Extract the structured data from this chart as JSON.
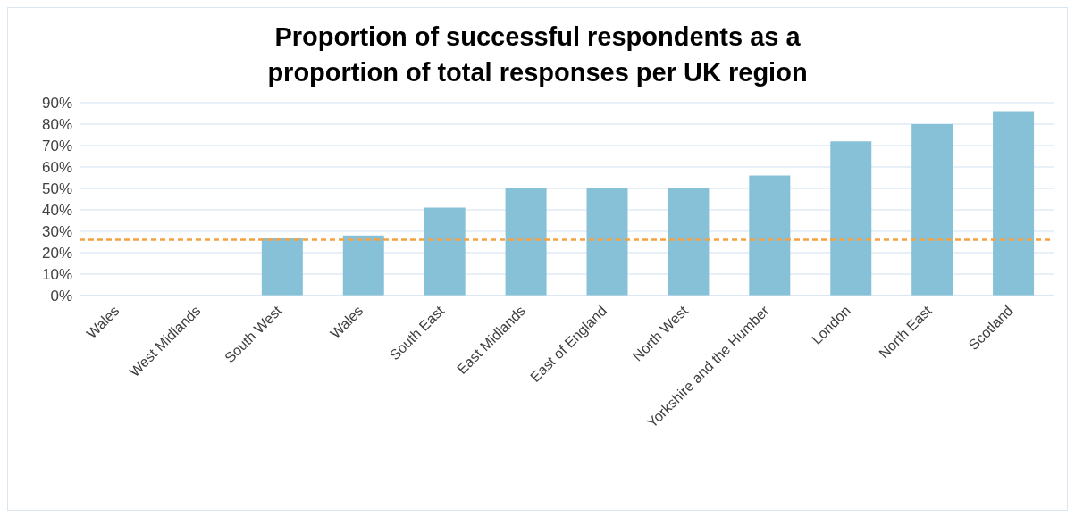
{
  "chart_data": {
    "type": "bar",
    "title": "Proportion of successful respondents as a proportion of total responses per UK region",
    "categories": [
      "Wales",
      "West Midlands",
      "South West",
      "Wales",
      "South East",
      "East Midlands",
      "East of England",
      "North West",
      "Yorkshire and the Humber",
      "London",
      "North East",
      "Scotland"
    ],
    "values": [
      0,
      0,
      27,
      28,
      41,
      50,
      50,
      50,
      56,
      72,
      80,
      86
    ],
    "color": "#87c1d8",
    "ylim": [
      0,
      90
    ],
    "yticks": [
      {
        "value": 0,
        "label": "0%"
      },
      {
        "value": 10,
        "label": "10%"
      },
      {
        "value": 20,
        "label": "20%"
      },
      {
        "value": 30,
        "label": "30%"
      },
      {
        "value": 40,
        "label": "40%"
      },
      {
        "value": 50,
        "label": "50%"
      },
      {
        "value": 60,
        "label": "60%"
      },
      {
        "value": 70,
        "label": "70%"
      },
      {
        "value": 80,
        "label": "80%"
      },
      {
        "value": 90,
        "label": "90%"
      }
    ],
    "ref_lines": [
      {
        "axis": "y",
        "value": 26,
        "color": "#f4a142",
        "line_style": "dashed"
      }
    ],
    "grid": "y",
    "legend": false
  }
}
